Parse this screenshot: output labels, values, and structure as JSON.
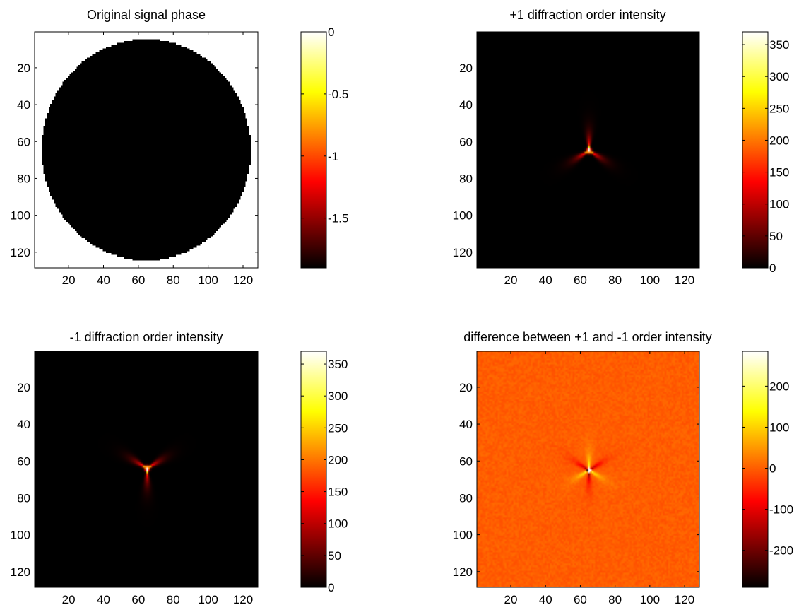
{
  "chart_data": [
    {
      "type": "heatmap",
      "title": "Original signal phase",
      "xlabel": "",
      "ylabel": "",
      "xlim": [
        0.5,
        128.5
      ],
      "ylim": [
        0.5,
        128.5
      ],
      "x_ticks": [
        "20",
        "40",
        "60",
        "80",
        "100",
        "120"
      ],
      "y_ticks": [
        "20",
        "40",
        "60",
        "80",
        "100",
        "120"
      ],
      "colormap": "hot",
      "clim": [
        -1.9,
        0
      ],
      "colorbar_ticks": [
        "-1.5",
        "-1",
        "-0.5",
        "0"
      ],
      "colorbar_tick_values": [
        -1.5,
        -1,
        -0.5,
        0
      ],
      "pattern": "disk",
      "disk_center": [
        64.5,
        64.5
      ],
      "disk_radius": 60,
      "inside_value": -1.9,
      "outside_value": 0,
      "grid": false
    },
    {
      "type": "heatmap",
      "title": "+1 diffraction order intensity",
      "xlabel": "",
      "ylabel": "",
      "xlim": [
        0.5,
        128.5
      ],
      "ylim": [
        0.5,
        128.5
      ],
      "x_ticks": [
        "20",
        "40",
        "60",
        "80",
        "100",
        "120"
      ],
      "y_ticks": [
        "20",
        "40",
        "60",
        "80",
        "100",
        "120"
      ],
      "colormap": "hot",
      "clim": [
        0,
        370
      ],
      "colorbar_ticks": [
        "0",
        "50",
        "100",
        "150",
        "200",
        "250",
        "300",
        "350"
      ],
      "colorbar_tick_values": [
        0,
        50,
        100,
        150,
        200,
        250,
        300,
        350
      ],
      "background_value": 0,
      "peak": {
        "x": 65,
        "y": 65,
        "value": 370
      },
      "arms_deg": [
        90,
        210,
        330
      ],
      "grid": false
    },
    {
      "type": "heatmap",
      "title": "-1 diffraction order intensity",
      "xlabel": "",
      "ylabel": "",
      "xlim": [
        0.5,
        128.5
      ],
      "ylim": [
        0.5,
        128.5
      ],
      "x_ticks": [
        "20",
        "40",
        "60",
        "80",
        "100",
        "120"
      ],
      "y_ticks": [
        "20",
        "40",
        "60",
        "80",
        "100",
        "120"
      ],
      "colormap": "hot",
      "clim": [
        0,
        370
      ],
      "colorbar_ticks": [
        "0",
        "50",
        "100",
        "150",
        "200",
        "250",
        "300",
        "350"
      ],
      "colorbar_tick_values": [
        0,
        50,
        100,
        150,
        200,
        250,
        300,
        350
      ],
      "background_value": 0,
      "peak": {
        "x": 65,
        "y": 64,
        "value": 370
      },
      "arms_deg": [
        270,
        30,
        150
      ],
      "grid": false
    },
    {
      "type": "heatmap",
      "title": "difference between +1 and -1 order intensity",
      "xlabel": "",
      "ylabel": "",
      "xlim": [
        0.5,
        128.5
      ],
      "ylim": [
        0.5,
        128.5
      ],
      "x_ticks": [
        "20",
        "40",
        "60",
        "80",
        "100",
        "120"
      ],
      "y_ticks": [
        "20",
        "40",
        "60",
        "80",
        "100",
        "120"
      ],
      "colormap": "hot",
      "clim": [
        -290,
        285
      ],
      "colorbar_ticks": [
        "-200",
        "-100",
        "0",
        "100",
        "200"
      ],
      "colorbar_tick_values": [
        -200,
        -100,
        0,
        100,
        200
      ],
      "background_value": 0,
      "center": {
        "x": 65,
        "y": 65
      },
      "positive_arms_deg": [
        90,
        210,
        330
      ],
      "negative_arms_deg": [
        270,
        30,
        150
      ],
      "peak_positive": 285,
      "peak_negative": -290,
      "grid": false
    }
  ]
}
